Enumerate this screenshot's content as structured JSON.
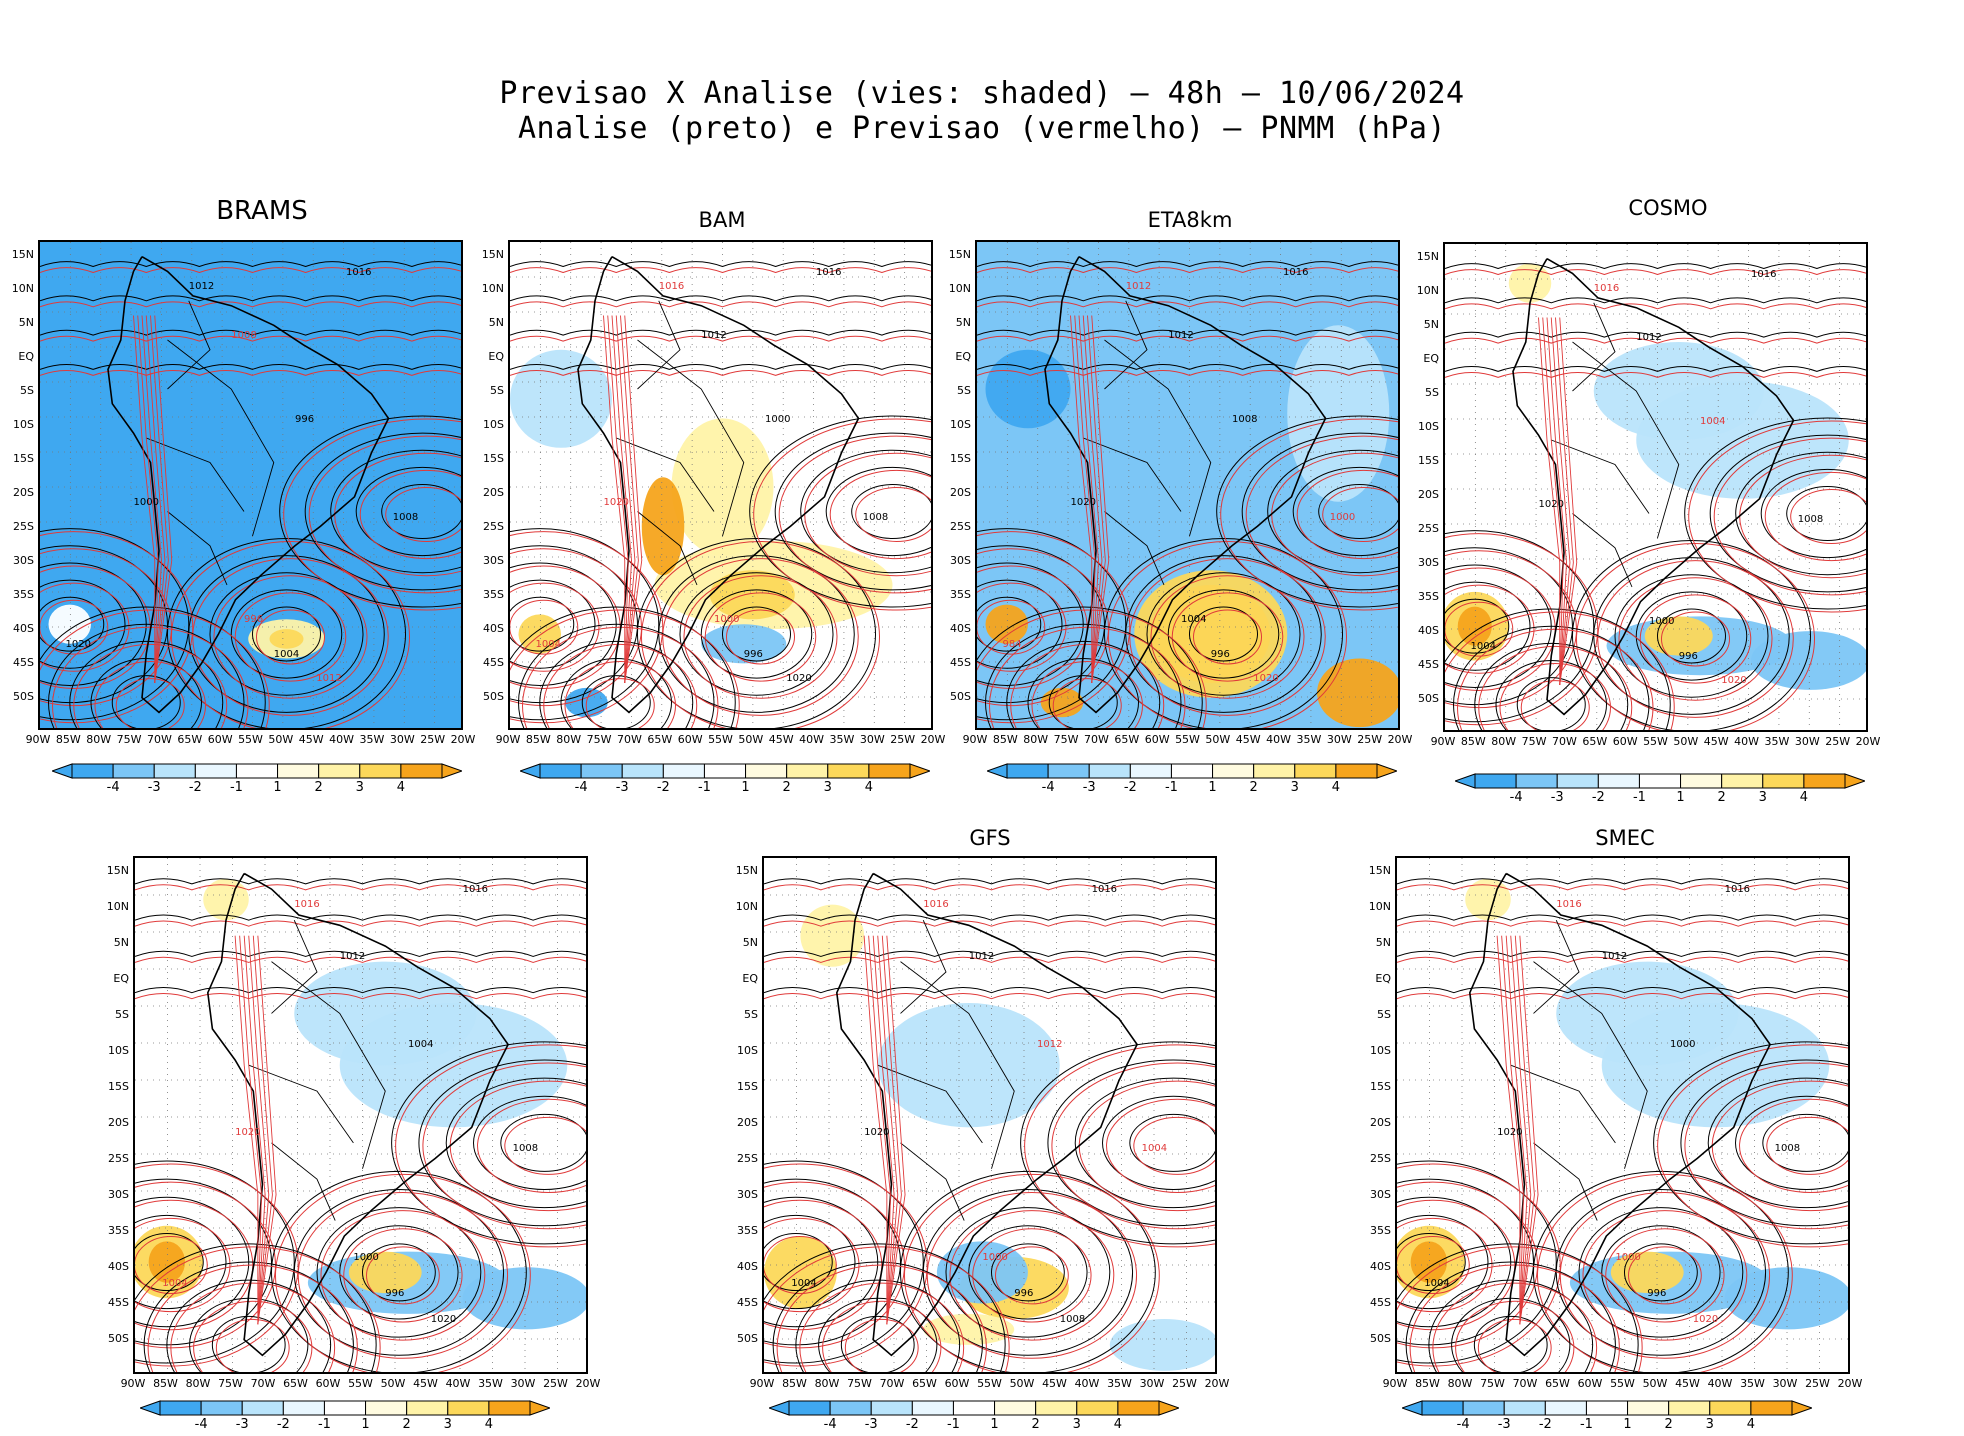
{
  "title_line1": "Previsao X Analise (vies: shaded) — 48h — 10/06/2024",
  "title_line2": "Analise (preto) e Previsao (vermelho) — PNMM (hPa)",
  "colors": {
    "strong_neg": "#3fa8f0",
    "mid_neg": "#7cc6f6",
    "weak_neg": "#b9e4fb",
    "neutral": "#ffffff",
    "weak_pos": "#fff3a8",
    "mid_pos": "#fcd85a",
    "strong_pos": "#f6a41c",
    "analysis_contour": "#000000",
    "forecast_contour": "#e03a3a",
    "land_outline": "#000000"
  },
  "latitude_labels": [
    "15N",
    "10N",
    "5N",
    "EQ",
    "5S",
    "10S",
    "15S",
    "20S",
    "25S",
    "30S",
    "35S",
    "40S",
    "45S",
    "50S"
  ],
  "longitude_labels": [
    "90W",
    "85W",
    "80W",
    "75W",
    "70W",
    "65W",
    "60W",
    "55W",
    "50W",
    "45W",
    "40W",
    "35W",
    "30W",
    "25W",
    "20W"
  ],
  "colorbar_labels": [
    "-4",
    "-3",
    "-2",
    "-1",
    "1",
    "2",
    "3",
    "4"
  ],
  "panels": [
    {
      "model": "BRAMS",
      "bias": "strong_neg",
      "isobars": [
        {
          "t": "1016",
          "c": "black"
        },
        {
          "t": "1012",
          "c": "black"
        },
        {
          "t": "1008",
          "c": "red"
        },
        {
          "t": "1000",
          "c": "black"
        },
        {
          "t": "996",
          "c": "red"
        },
        {
          "t": "1004",
          "c": "black"
        },
        {
          "t": "1020",
          "c": "black"
        },
        {
          "t": "1012",
          "c": "red"
        },
        {
          "t": "1008",
          "c": "black"
        },
        {
          "t": "996",
          "c": "black"
        }
      ]
    },
    {
      "model": "BAM",
      "bias": "mixed_pos",
      "isobars": [
        {
          "t": "1016",
          "c": "black"
        },
        {
          "t": "1016",
          "c": "red"
        },
        {
          "t": "1012",
          "c": "black"
        },
        {
          "t": "1020",
          "c": "red"
        },
        {
          "t": "1000",
          "c": "red"
        },
        {
          "t": "996",
          "c": "black"
        },
        {
          "t": "1004",
          "c": "red"
        },
        {
          "t": "1020",
          "c": "black"
        },
        {
          "t": "1008",
          "c": "black"
        },
        {
          "t": "1000",
          "c": "black"
        }
      ]
    },
    {
      "model": "ETA8km",
      "bias": "strong_neg_warm_south",
      "isobars": [
        {
          "t": "1016",
          "c": "black"
        },
        {
          "t": "1012",
          "c": "red"
        },
        {
          "t": "1012",
          "c": "black"
        },
        {
          "t": "1020",
          "c": "black"
        },
        {
          "t": "1004",
          "c": "black"
        },
        {
          "t": "996",
          "c": "black"
        },
        {
          "t": "984",
          "c": "red"
        },
        {
          "t": "1020",
          "c": "red"
        },
        {
          "t": "1000",
          "c": "red"
        },
        {
          "t": "1008",
          "c": "black"
        }
      ]
    },
    {
      "model": "COSMO",
      "bias": "mild_neg",
      "isobars": [
        {
          "t": "1016",
          "c": "black"
        },
        {
          "t": "1016",
          "c": "red"
        },
        {
          "t": "1012",
          "c": "black"
        },
        {
          "t": "1020",
          "c": "black"
        },
        {
          "t": "1000",
          "c": "black"
        },
        {
          "t": "996",
          "c": "black"
        },
        {
          "t": "1004",
          "c": "black"
        },
        {
          "t": "1020",
          "c": "red"
        },
        {
          "t": "1008",
          "c": "black"
        },
        {
          "t": "1004",
          "c": "red"
        }
      ]
    },
    {
      "model": "",
      "bias": "mild_neg",
      "isobars": [
        {
          "t": "1016",
          "c": "black"
        },
        {
          "t": "1016",
          "c": "red"
        },
        {
          "t": "1012",
          "c": "black"
        },
        {
          "t": "1020",
          "c": "red"
        },
        {
          "t": "1000",
          "c": "black"
        },
        {
          "t": "996",
          "c": "black"
        },
        {
          "t": "1004",
          "c": "red"
        },
        {
          "t": "1020",
          "c": "black"
        },
        {
          "t": "1008",
          "c": "black"
        },
        {
          "t": "1004",
          "c": "black"
        }
      ]
    },
    {
      "model": "GFS",
      "bias": "weak_neg",
      "isobars": [
        {
          "t": "1016",
          "c": "black"
        },
        {
          "t": "1016",
          "c": "red"
        },
        {
          "t": "1012",
          "c": "black"
        },
        {
          "t": "1020",
          "c": "black"
        },
        {
          "t": "1000",
          "c": "red"
        },
        {
          "t": "996",
          "c": "black"
        },
        {
          "t": "1004",
          "c": "black"
        },
        {
          "t": "1008",
          "c": "black"
        },
        {
          "t": "1004",
          "c": "red"
        },
        {
          "t": "1012",
          "c": "red"
        }
      ]
    },
    {
      "model": "SMEC",
      "bias": "mild_neg",
      "isobars": [
        {
          "t": "1016",
          "c": "black"
        },
        {
          "t": "1016",
          "c": "red"
        },
        {
          "t": "1012",
          "c": "black"
        },
        {
          "t": "1020",
          "c": "black"
        },
        {
          "t": "1000",
          "c": "red"
        },
        {
          "t": "996",
          "c": "black"
        },
        {
          "t": "1004",
          "c": "black"
        },
        {
          "t": "1020",
          "c": "red"
        },
        {
          "t": "1008",
          "c": "black"
        },
        {
          "t": "1000",
          "c": "black"
        }
      ]
    }
  ]
}
